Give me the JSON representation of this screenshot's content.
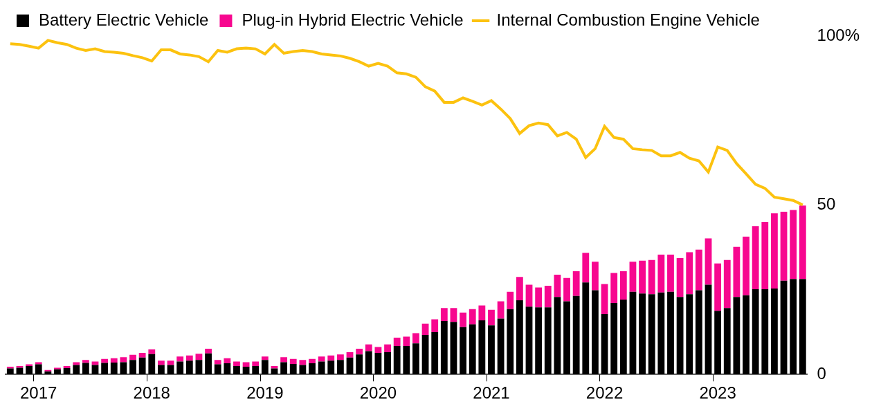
{
  "chart_data": {
    "type": "bar",
    "stacked": true,
    "grid": false,
    "legend": "top-left",
    "categories": [
      null,
      null,
      null,
      "2017",
      null,
      null,
      null,
      null,
      null,
      null,
      null,
      null,
      null,
      null,
      null,
      "2018",
      null,
      null,
      null,
      null,
      null,
      null,
      null,
      null,
      null,
      null,
      null,
      "2019",
      null,
      null,
      null,
      null,
      null,
      null,
      null,
      null,
      null,
      null,
      null,
      "2020",
      null,
      null,
      null,
      null,
      null,
      null,
      null,
      null,
      null,
      null,
      null,
      "2021",
      null,
      null,
      null,
      null,
      null,
      null,
      null,
      null,
      null,
      null,
      null,
      "2022",
      null,
      null,
      null,
      null,
      null,
      null,
      null,
      null,
      null,
      null,
      null,
      "2023",
      null,
      null,
      null,
      null,
      null,
      null,
      null,
      null,
      null
    ],
    "ylim": [
      0,
      100
    ],
    "yticks": [
      0,
      50,
      {
        "value": 100,
        "label": "100%"
      }
    ],
    "series": [
      {
        "name": "Battery Electric Vehicle",
        "type": "bar",
        "color": "#000000",
        "values": [
          1.8,
          2.0,
          2.5,
          3.0,
          0.9,
          1.5,
          1.9,
          2.8,
          3.4,
          2.8,
          3.4,
          3.5,
          3.6,
          4.3,
          5.0,
          6.0,
          2.8,
          2.8,
          3.8,
          4.1,
          4.3,
          6.2,
          3.0,
          3.3,
          2.5,
          2.3,
          2.5,
          4.3,
          1.8,
          3.6,
          3.1,
          2.8,
          3.3,
          3.8,
          4.1,
          4.3,
          5.0,
          5.9,
          6.9,
          6.4,
          6.6,
          8.4,
          8.4,
          9.2,
          11.7,
          12.5,
          15.8,
          15.5,
          14.0,
          14.8,
          16.0,
          14.5,
          16.5,
          19.3,
          21.9,
          20.0,
          19.8,
          19.8,
          22.9,
          21.6,
          23.2,
          27.2,
          24.9,
          17.8,
          21.1,
          22.1,
          24.4,
          23.9,
          23.7,
          24.2,
          24.4,
          22.9,
          23.7,
          24.9,
          26.5,
          18.8,
          19.6,
          22.9,
          23.4,
          25.2,
          25.2,
          25.4,
          27.7,
          28.2,
          28.2
        ]
      },
      {
        "name": "Plug-in Hybrid Electric Vehicle",
        "type": "bar",
        "color": "#f7078f",
        "values": [
          0.5,
          0.5,
          0.5,
          0.6,
          0.4,
          0.5,
          0.6,
          0.8,
          0.9,
          1.0,
          1.2,
          1.3,
          1.5,
          1.5,
          1.4,
          1.4,
          1.3,
          1.3,
          1.5,
          1.5,
          1.8,
          1.4,
          1.3,
          1.5,
          1.3,
          1.3,
          1.3,
          1.0,
          0.7,
          1.5,
          1.5,
          1.5,
          1.3,
          1.5,
          1.5,
          1.6,
          1.6,
          1.7,
          2.0,
          1.7,
          2.3,
          2.5,
          2.8,
          3.0,
          3.3,
          3.8,
          3.8,
          4.1,
          4.3,
          4.5,
          4.4,
          4.6,
          5.1,
          5.1,
          6.9,
          6.5,
          5.9,
          6.4,
          6.6,
          6.9,
          7.3,
          8.7,
          8.4,
          8.9,
          8.9,
          8.4,
          8.9,
          9.7,
          10.1,
          11.2,
          11.0,
          11.5,
          12.4,
          12.0,
          13.7,
          14.0,
          14.2,
          14.8,
          17.3,
          18.6,
          19.8,
          22.2,
          20.4,
          20.4,
          21.7
        ]
      },
      {
        "name": "Internal Combustion Engine Vehicle",
        "type": "line",
        "color": "#fcc20f",
        "values": [
          97.7,
          97.5,
          97.0,
          96.4,
          98.7,
          98.0,
          97.5,
          96.4,
          95.7,
          96.2,
          95.4,
          95.2,
          94.9,
          94.2,
          93.6,
          92.6,
          95.9,
          95.9,
          94.7,
          94.4,
          93.9,
          92.4,
          95.7,
          95.2,
          96.2,
          96.4,
          96.2,
          94.7,
          97.5,
          94.9,
          95.4,
          95.7,
          95.4,
          94.7,
          94.4,
          94.1,
          93.4,
          92.4,
          91.1,
          91.9,
          91.1,
          89.1,
          88.8,
          87.8,
          85.0,
          83.7,
          80.4,
          80.4,
          81.7,
          80.7,
          79.6,
          80.9,
          78.4,
          75.6,
          71.2,
          73.5,
          74.3,
          73.8,
          70.5,
          71.5,
          69.5,
          64.1,
          66.7,
          73.3,
          70.0,
          69.5,
          66.7,
          66.4,
          66.2,
          64.6,
          64.6,
          65.6,
          63.9,
          63.1,
          59.8,
          67.2,
          66.2,
          62.3,
          59.3,
          56.2,
          55.0,
          52.4,
          51.9,
          51.4,
          50.1
        ]
      }
    ]
  }
}
